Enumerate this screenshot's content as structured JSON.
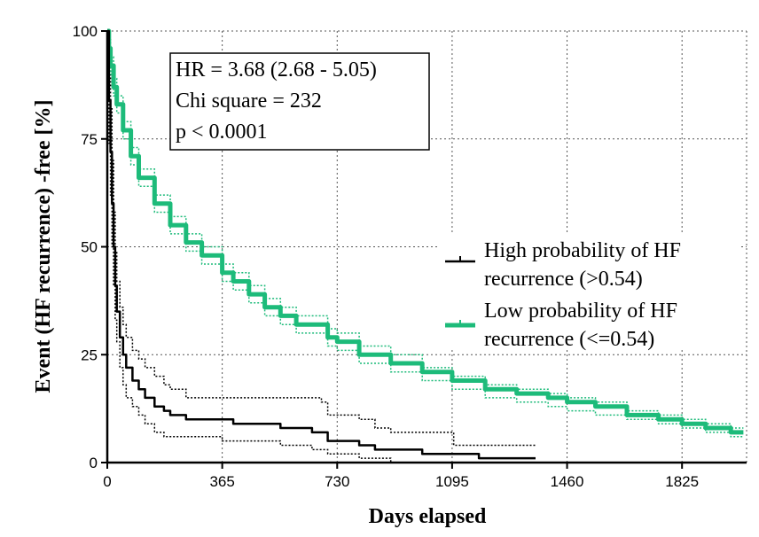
{
  "chart_data": {
    "type": "line",
    "subtype": "kaplan-meier survival curve with confidence bands",
    "xlabel": "Days elapsed",
    "ylabel": "Event (HF recurrence) -free [%]",
    "x_ticks": [
      0,
      365,
      730,
      1095,
      1460,
      1825
    ],
    "y_ticks": [
      0,
      25,
      50,
      75,
      100
    ],
    "xlim": [
      0,
      2030
    ],
    "ylim": [
      0,
      100
    ],
    "grid": "dotted",
    "legend_position": "right-middle",
    "annotation": [
      "HR = 3.68 (2.68 - 5.05)",
      "Chi square = 232",
      "p < 0.0001"
    ],
    "series": [
      {
        "name": "High probability of HF recurrence (>0.54)",
        "color": "#000000",
        "legend_lines": [
          "High probability of HF",
          "recurrence (>0.54)"
        ],
        "x": [
          0,
          5,
          10,
          15,
          20,
          25,
          30,
          40,
          50,
          60,
          80,
          100,
          120,
          150,
          180,
          200,
          250,
          300,
          365,
          400,
          450,
          500,
          550,
          600,
          650,
          680,
          700,
          730,
          800,
          850,
          900,
          1000,
          1100,
          1180,
          1250,
          1300,
          1360
        ],
        "y": [
          100,
          84,
          72,
          60,
          50,
          41,
          35,
          29,
          25,
          22,
          19,
          17,
          15,
          13,
          12,
          11,
          10,
          10,
          10,
          9,
          9,
          9,
          8,
          8,
          7,
          7,
          5,
          5,
          4,
          3,
          3,
          2,
          2,
          1,
          1,
          1,
          1
        ],
        "ci_upper": [
          100,
          92,
          82,
          70,
          58,
          49,
          42,
          36,
          32,
          29,
          26,
          24,
          22,
          20,
          18,
          17,
          15,
          15,
          15,
          15,
          15,
          15,
          15,
          15,
          15,
          14,
          11,
          11,
          10,
          8,
          7,
          7,
          4,
          4,
          4,
          4,
          4
        ],
        "ci_lower": [
          100,
          74,
          62,
          50,
          41,
          33,
          28,
          22,
          18,
          15,
          13,
          11,
          9,
          7,
          6,
          6,
          6,
          6,
          5,
          5,
          5,
          5,
          4,
          4,
          3,
          3,
          2,
          2,
          1,
          1,
          0,
          0,
          0,
          0,
          0,
          0,
          0
        ]
      },
      {
        "name": "Low probability of HF recurrence (<=0.54)",
        "color": "#1dbb7a",
        "legend_lines": [
          "Low probability of HF",
          "recurrence (<=0.54)"
        ],
        "x": [
          0,
          5,
          10,
          20,
          30,
          50,
          75,
          100,
          150,
          200,
          250,
          300,
          365,
          400,
          450,
          500,
          550,
          600,
          700,
          730,
          800,
          900,
          1000,
          1095,
          1200,
          1300,
          1400,
          1460,
          1550,
          1650,
          1750,
          1825,
          1900,
          1980,
          2020
        ],
        "y": [
          100,
          96,
          92,
          87,
          83,
          77,
          71,
          66,
          60,
          55,
          51,
          48,
          44,
          42,
          39,
          36,
          34,
          32,
          29,
          28,
          25,
          23,
          21,
          19,
          17,
          16,
          15,
          14,
          13,
          11,
          10,
          9,
          8,
          7,
          7
        ],
        "ci_upper": [
          100,
          98,
          94,
          89,
          85,
          79,
          73,
          68,
          62,
          57,
          53,
          50,
          46,
          44,
          41,
          38,
          36,
          34,
          31,
          30,
          27,
          25,
          22,
          20,
          18,
          17,
          16,
          15,
          14,
          12,
          11,
          10,
          9,
          8,
          8
        ],
        "ci_lower": [
          100,
          94,
          90,
          85,
          81,
          75,
          69,
          64,
          58,
          53,
          49,
          46,
          42,
          40,
          37,
          34,
          32,
          30,
          27,
          26,
          23,
          21,
          19,
          17,
          15,
          14,
          13,
          12,
          11,
          10,
          9,
          8,
          7,
          6,
          6
        ]
      }
    ]
  }
}
